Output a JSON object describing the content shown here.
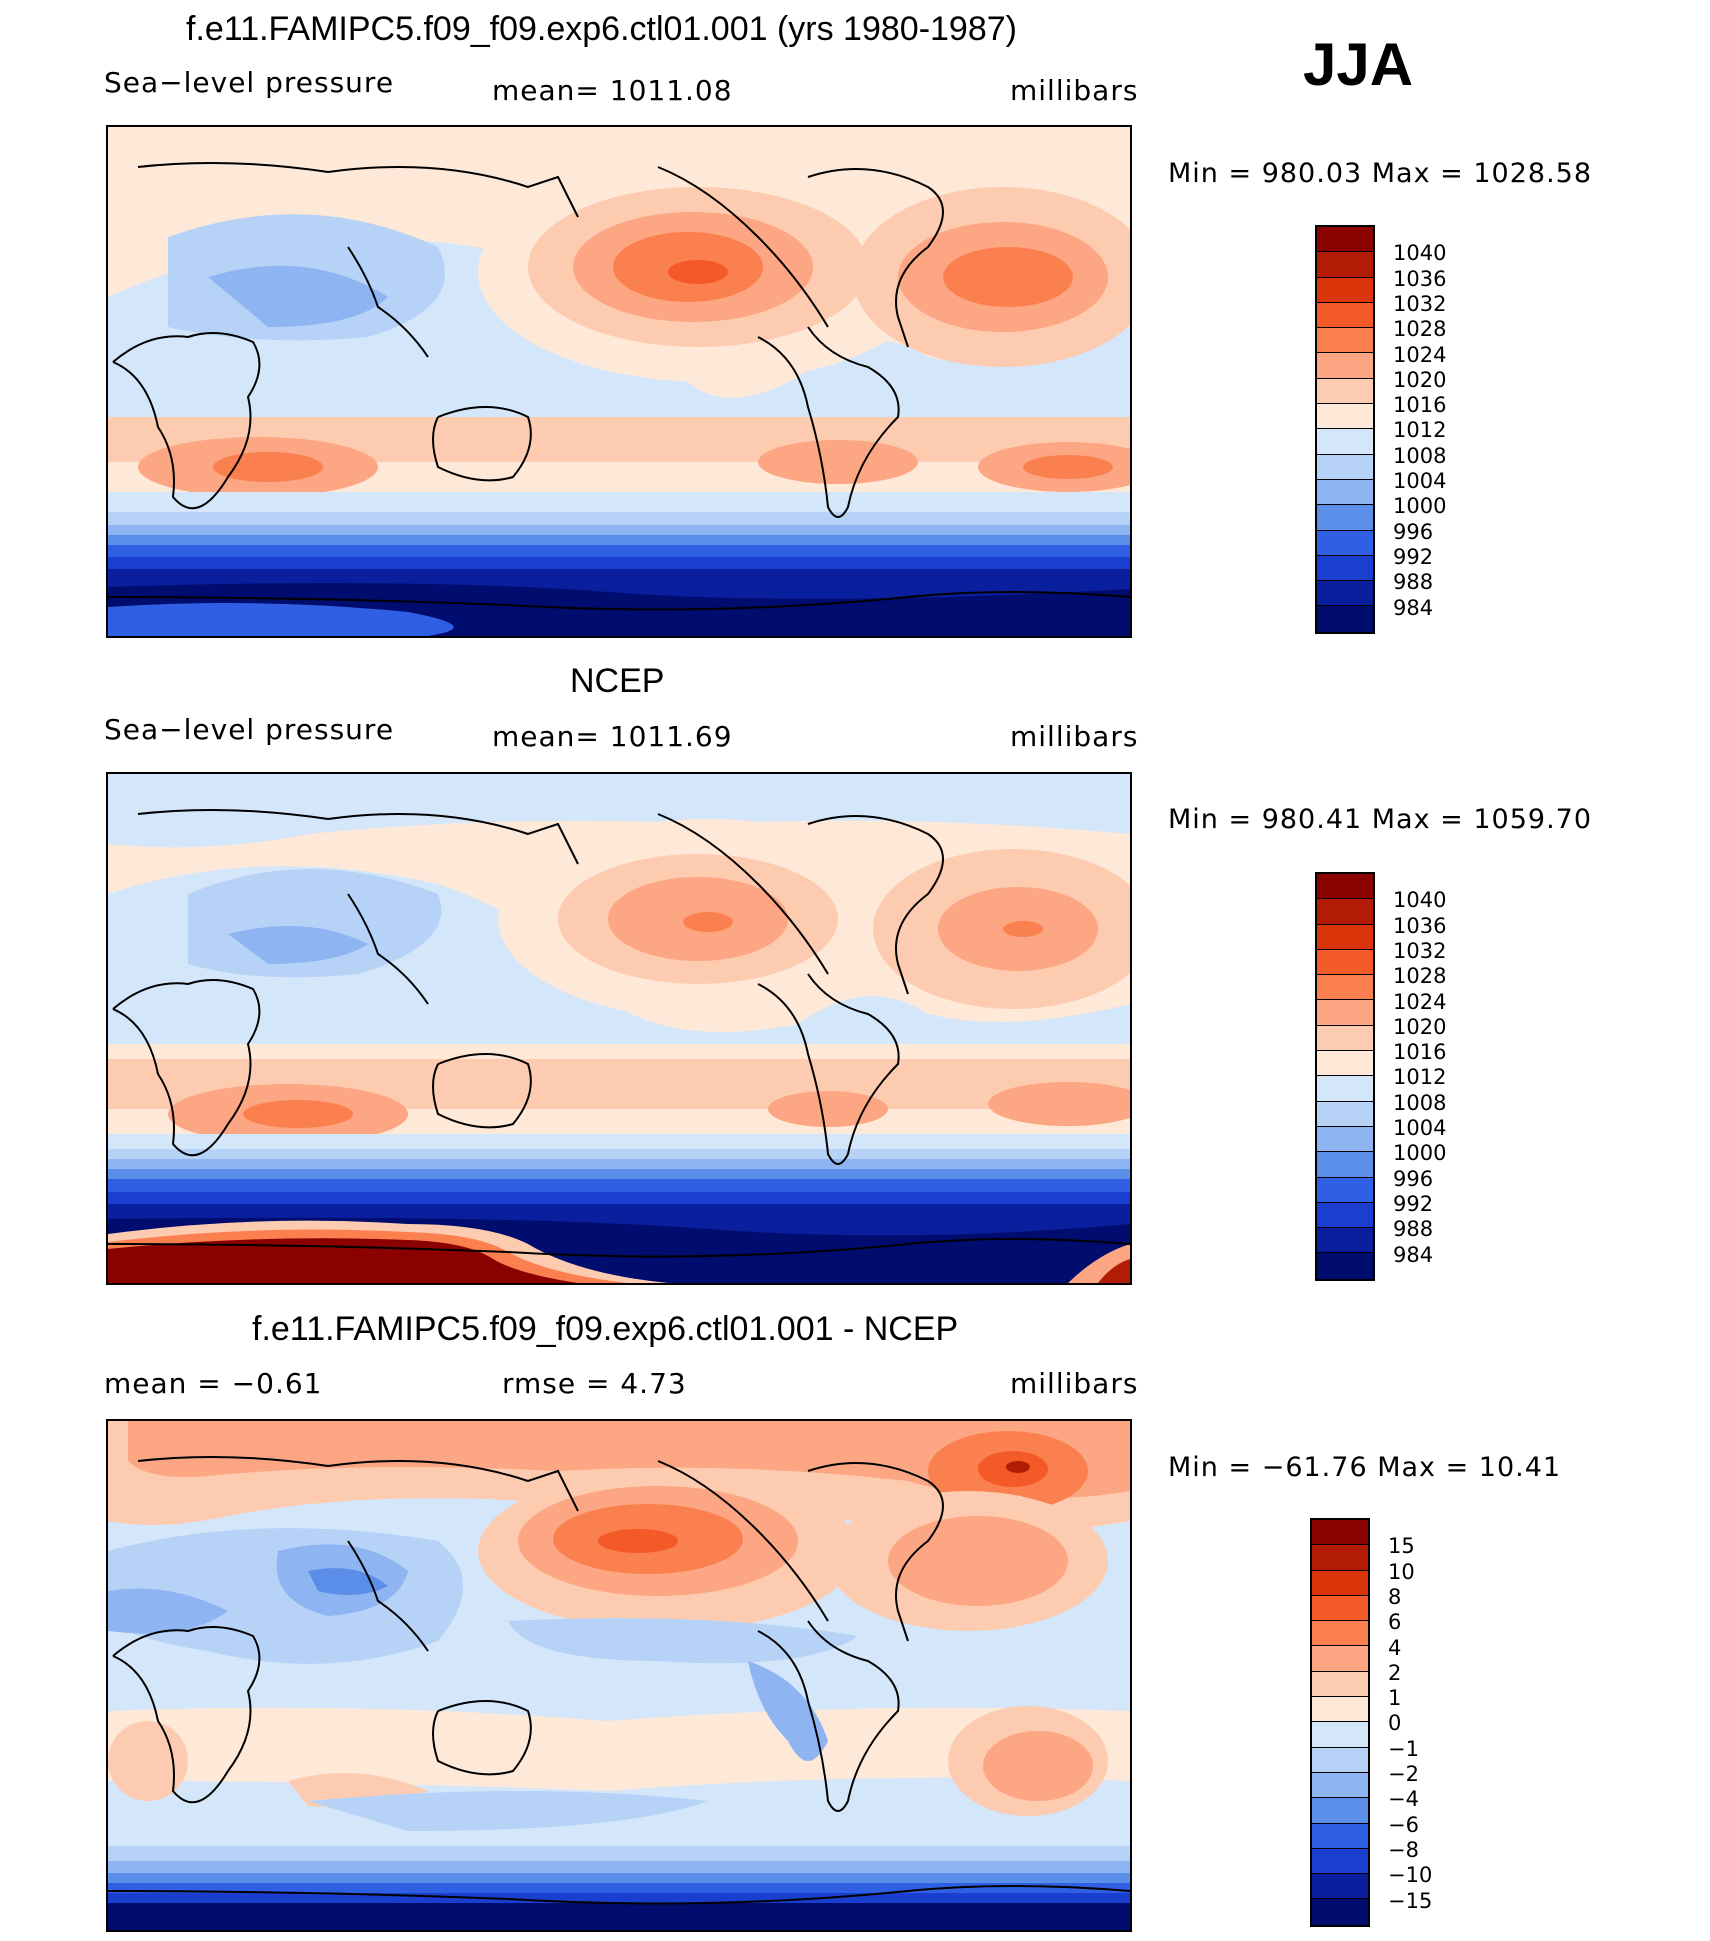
{
  "season": "JJA",
  "panels": [
    {
      "title": "f.e11.FAMIPC5.f09_f09.exp6.ctl01.001 (yrs 1980-1987)",
      "left": "Sea−level pressure",
      "mid": "mean=  1011.08",
      "right": "millibars",
      "minmax": "Min  =  980.03  Max  =  1028.58",
      "levels": [
        "1040",
        "1036",
        "1032",
        "1028",
        "1024",
        "1020",
        "1016",
        "1012",
        "1008",
        "1004",
        "1000",
        "996",
        "992",
        "988",
        "984"
      ],
      "colors": [
        "#8b0000",
        "#b21c06",
        "#d9340a",
        "#f35a28",
        "#fb8050",
        "#fca683",
        "#fdcbb0",
        "#fee8d8",
        "#d4e6fa",
        "#b6d2f7",
        "#8fb4f2",
        "#5a8ee9",
        "#2f5fe2",
        "#1a3fcf",
        "#0a1f9e",
        "#000c6e"
      ]
    },
    {
      "title": "NCEP",
      "left": "Sea−level pressure",
      "mid": "mean=  1011.69",
      "right": "millibars",
      "minmax": "Min  =  980.41  Max  =  1059.70",
      "levels": [
        "1040",
        "1036",
        "1032",
        "1028",
        "1024",
        "1020",
        "1016",
        "1012",
        "1008",
        "1004",
        "1000",
        "996",
        "992",
        "988",
        "984"
      ],
      "colors": [
        "#8b0000",
        "#b21c06",
        "#d9340a",
        "#f35a28",
        "#fb8050",
        "#fca683",
        "#fdcbb0",
        "#fee8d8",
        "#d4e6fa",
        "#b6d2f7",
        "#8fb4f2",
        "#5a8ee9",
        "#2f5fe2",
        "#1a3fcf",
        "#0a1f9e",
        "#000c6e"
      ]
    },
    {
      "title": "f.e11.FAMIPC5.f09_f09.exp6.ctl01.001 - NCEP",
      "left": "mean  =    −0.61",
      "mid": "rmse  =     4.73",
      "right": "millibars",
      "minmax": "Min  =  −61.76  Max  =    10.41",
      "levels": [
        "15",
        "10",
        "8",
        "6",
        "4",
        "2",
        "1",
        "0",
        "−1",
        "−2",
        "−4",
        "−6",
        "−8",
        "−10",
        "−15"
      ],
      "colors": [
        "#8b0000",
        "#b21c06",
        "#d9340a",
        "#f35a28",
        "#fb8050",
        "#fca683",
        "#fdcbb0",
        "#fee8d8",
        "#d4e6fa",
        "#b6d2f7",
        "#8fb4f2",
        "#5a8ee9",
        "#2f5fe2",
        "#1a3fcf",
        "#0a1f9e",
        "#000c6e"
      ]
    }
  ]
}
